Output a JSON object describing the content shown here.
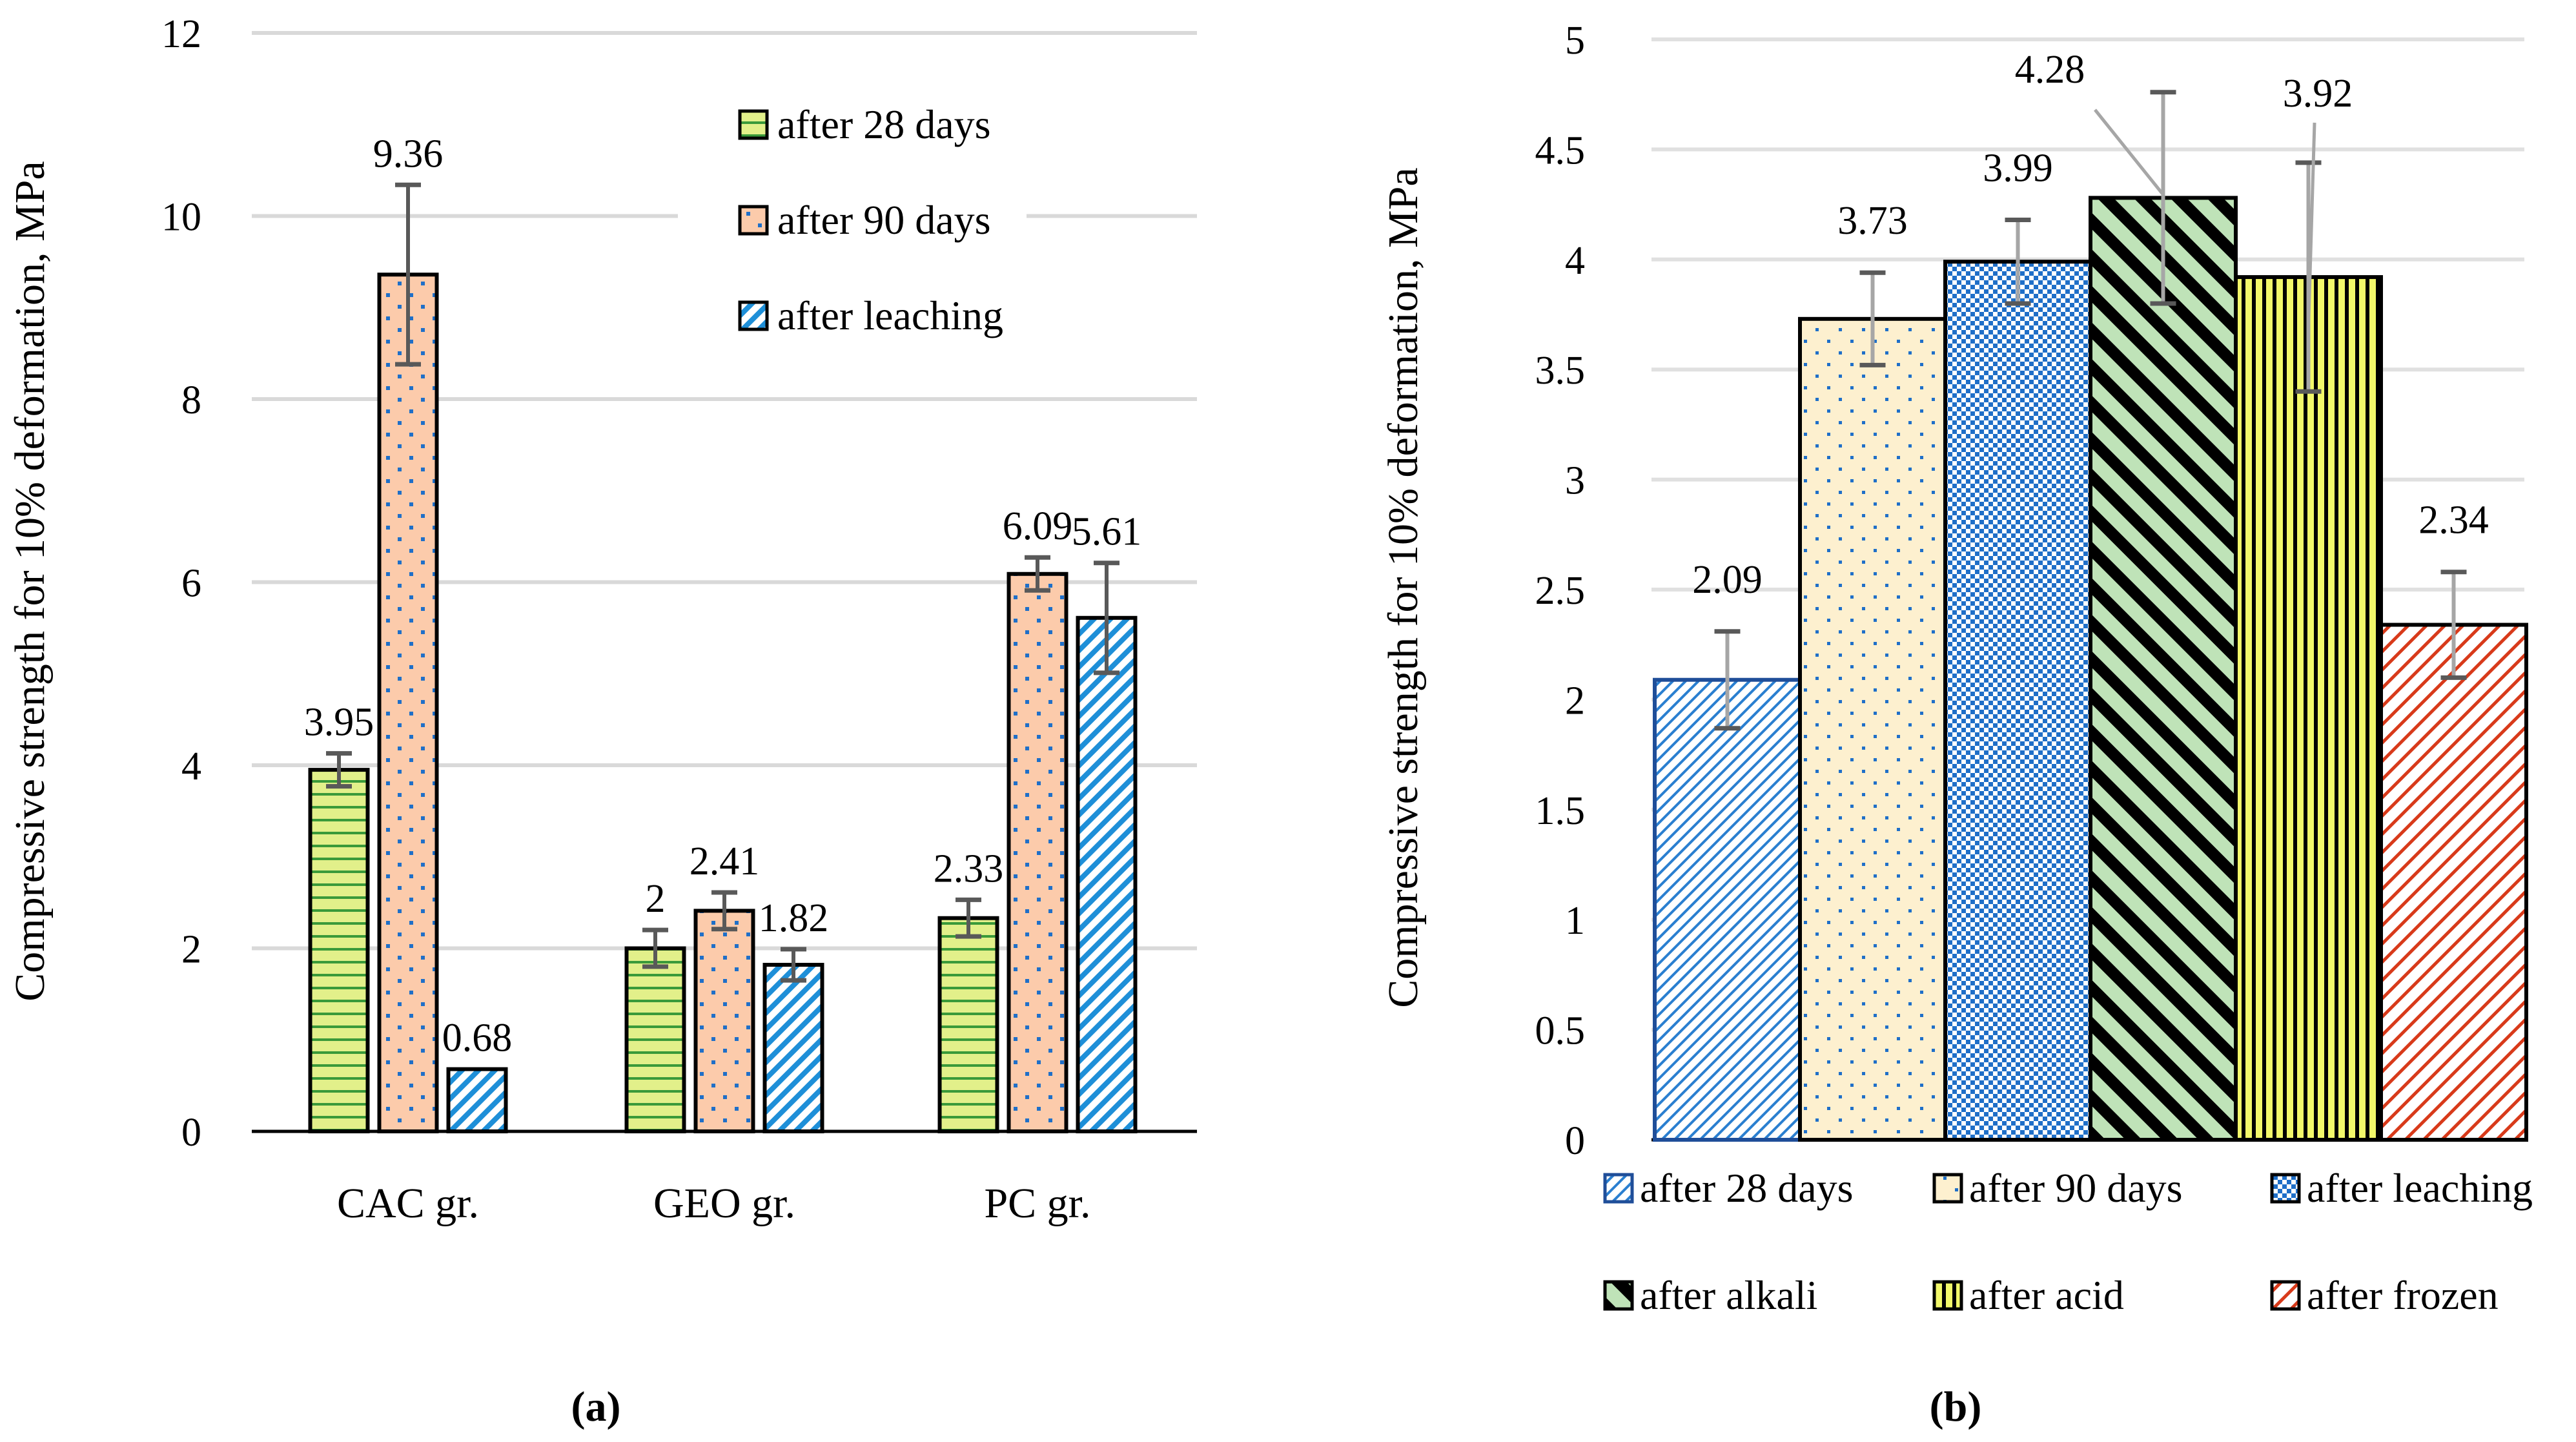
{
  "chart_data": [
    {
      "type": "bar",
      "panel_label": "(a)",
      "ylabel": "Compressive strength for 10% deformation, MPa",
      "ylim": [
        0,
        12
      ],
      "yticks": [
        0,
        2,
        4,
        6,
        8,
        10,
        12
      ],
      "grid": true,
      "legend_position": "top-right",
      "categories": [
        "CAC gr.",
        "GEO gr.",
        "PC gr."
      ],
      "series": [
        {
          "name": "after 28 days",
          "values": [
            3.95,
            2,
            2.33
          ],
          "errors": [
            0.18,
            0.2,
            0.2
          ],
          "labels": [
            "3.95",
            "2",
            "2.33"
          ],
          "color": "#e2f08a",
          "pattern": "horizontal",
          "pattern_color": "#3a9a3a"
        },
        {
          "name": "after 90 days",
          "values": [
            9.36,
            2.41,
            6.09
          ],
          "errors": [
            0.98,
            0.2,
            0.18
          ],
          "labels": [
            "9.36",
            "2.41",
            "6.09"
          ],
          "color": "#fccbab",
          "pattern": "dots",
          "pattern_color": "#1f6fc8"
        },
        {
          "name": "after leaching",
          "values": [
            0.68,
            1.82,
            5.61
          ],
          "errors": [
            0,
            0.17,
            0.6
          ],
          "labels": [
            "0.68",
            "1.82",
            "5.61"
          ],
          "color": "#ffffff",
          "pattern": "diagonal",
          "pattern_color": "#1e8fd8"
        }
      ]
    },
    {
      "type": "bar",
      "panel_label": "(b)",
      "ylabel": "Compressive strength for 10% deformation, MPa",
      "ylim": [
        0,
        5
      ],
      "yticks": [
        "0",
        "0.5",
        "1",
        "1.5",
        "2",
        "2.5",
        "3",
        "3.5",
        "4",
        "4.5",
        "5"
      ],
      "grid": true,
      "legend_position": "bottom",
      "series": [
        {
          "name": "after 28 days",
          "value": 2.09,
          "error": 0.22,
          "label": "2.09",
          "color": "#ffffff",
          "pattern": "diagonal-thin",
          "pattern_color": "#2a7fd0"
        },
        {
          "name": "after 90 days",
          "value": 3.73,
          "error": 0.21,
          "label": "3.73",
          "color": "#fdf0cf",
          "pattern": "dots",
          "pattern_color": "#1f6fc8"
        },
        {
          "name": "after leaching",
          "value": 3.99,
          "error": 0.19,
          "label": "3.99",
          "color": "#1f6fc8",
          "pattern": "checker",
          "pattern_color": "#ffffff"
        },
        {
          "name": "after alkali",
          "value": 4.28,
          "error": 0.48,
          "label": "4.28",
          "color": "#bfe3b8",
          "pattern": "diagonal-bold",
          "pattern_color": "#000000"
        },
        {
          "name": "after acid",
          "value": 3.92,
          "error": 0.52,
          "label": "3.92",
          "color": "#f2f86a",
          "pattern": "vertical",
          "pattern_color": "#000000"
        },
        {
          "name": "after frozen",
          "value": 2.34,
          "error": 0.24,
          "label": "2.34",
          "color": "#ffffff",
          "pattern": "diagonal-red",
          "pattern_color": "#d83a1a"
        }
      ]
    }
  ]
}
